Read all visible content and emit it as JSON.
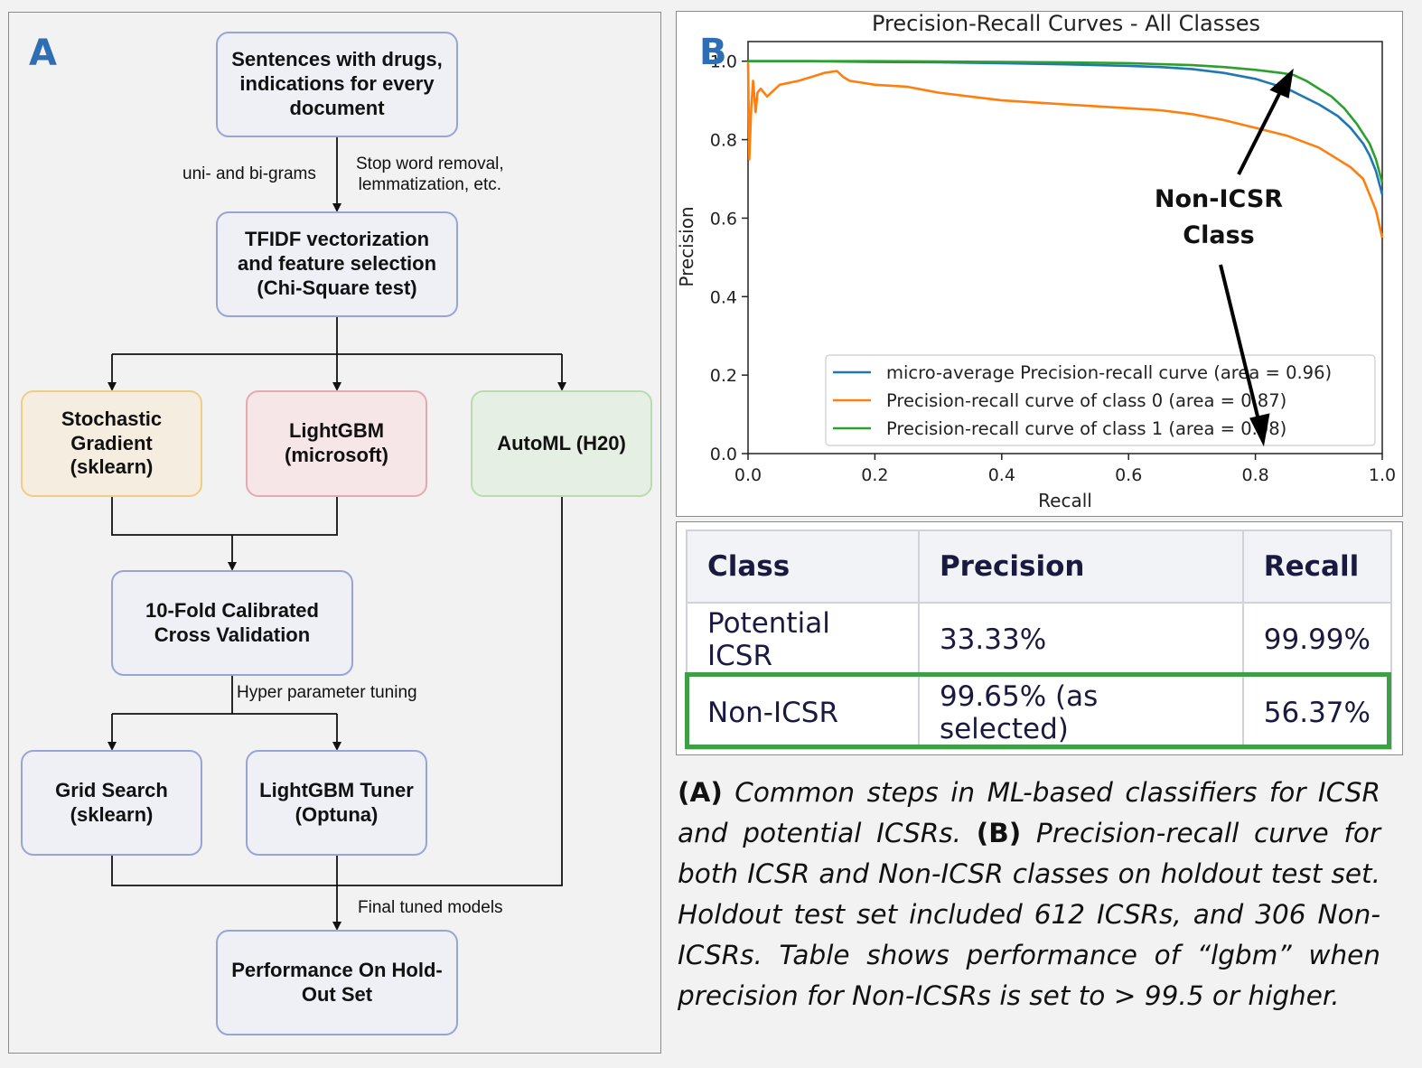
{
  "panel_a": {
    "letter": "A",
    "nodes": {
      "input": "Sentences with drugs, indications for every document",
      "tfidf": "TFIDF vectorization and feature selection (Chi-Square test)",
      "sgd": "Stochastic Gradient (sklearn)",
      "lgbm": "LightGBM (microsoft)",
      "automl": "AutoML (H20)",
      "cv": "10-Fold Calibrated Cross Validation",
      "grid": "Grid Search (sklearn)",
      "tuner": "LightGBM Tuner (Optuna)",
      "perf": "Performance On Hold-Out Set"
    },
    "edge_labels": {
      "ngrams": "uni- and bi-grams",
      "preprocess_1": "Stop word removal,",
      "preprocess_2": "lemmatization, etc.",
      "hyper": "Hyper parameter tuning",
      "final": "Final tuned models"
    }
  },
  "panel_b": {
    "letter": "B",
    "annotation": {
      "line1": "Non-ICSR",
      "line2": "Class"
    },
    "colors": {
      "micro": "#1f77b4",
      "class0": "#ff7f0e",
      "class1": "#2ca02c"
    }
  },
  "chart_data": {
    "type": "line",
    "title": "Precision-Recall Curves - All Classes",
    "xlabel": "Recall",
    "ylabel": "Precision",
    "xlim": [
      0.0,
      1.0
    ],
    "ylim": [
      0.0,
      1.05
    ],
    "xticks": [
      "0.0",
      "0.2",
      "0.4",
      "0.6",
      "0.8",
      "1.0"
    ],
    "yticks": [
      "0.0",
      "0.2",
      "0.4",
      "0.6",
      "0.8",
      "1.0"
    ],
    "legend_position": "lower-right",
    "series": [
      {
        "name": "micro-average Precision-recall curve (area = 0.96)",
        "x": [
          0.0,
          0.1,
          0.2,
          0.3,
          0.4,
          0.5,
          0.6,
          0.65,
          0.7,
          0.75,
          0.8,
          0.85,
          0.9,
          0.93,
          0.95,
          0.97,
          0.98,
          0.99,
          1.0
        ],
        "y": [
          1.0,
          1.0,
          0.998,
          0.997,
          0.995,
          0.992,
          0.988,
          0.985,
          0.98,
          0.97,
          0.955,
          0.93,
          0.89,
          0.86,
          0.83,
          0.79,
          0.76,
          0.72,
          0.66
        ]
      },
      {
        "name": "Precision-recall curve of class 0 (area = 0.87)",
        "x": [
          0.0,
          0.002,
          0.005,
          0.008,
          0.012,
          0.015,
          0.02,
          0.03,
          0.05,
          0.08,
          0.1,
          0.12,
          0.14,
          0.15,
          0.16,
          0.2,
          0.25,
          0.3,
          0.35,
          0.4,
          0.45,
          0.5,
          0.55,
          0.6,
          0.65,
          0.7,
          0.75,
          0.8,
          0.85,
          0.9,
          0.93,
          0.95,
          0.97,
          0.98,
          0.99,
          1.0
        ],
        "y": [
          1.0,
          0.75,
          0.88,
          0.95,
          0.87,
          0.92,
          0.93,
          0.91,
          0.94,
          0.95,
          0.96,
          0.97,
          0.975,
          0.96,
          0.95,
          0.94,
          0.935,
          0.92,
          0.91,
          0.9,
          0.895,
          0.89,
          0.885,
          0.88,
          0.875,
          0.865,
          0.85,
          0.83,
          0.81,
          0.78,
          0.75,
          0.73,
          0.7,
          0.66,
          0.62,
          0.55
        ]
      },
      {
        "name": "Precision-recall curve of class 1 (area = 0.98)",
        "x": [
          0.0,
          0.1,
          0.2,
          0.3,
          0.4,
          0.5,
          0.6,
          0.7,
          0.75,
          0.8,
          0.84,
          0.86,
          0.88,
          0.9,
          0.92,
          0.94,
          0.96,
          0.98,
          0.99,
          1.0
        ],
        "y": [
          1.0,
          1.0,
          1.0,
          0.999,
          0.998,
          0.997,
          0.995,
          0.99,
          0.985,
          0.978,
          0.97,
          0.965,
          0.95,
          0.93,
          0.91,
          0.88,
          0.84,
          0.79,
          0.75,
          0.69
        ]
      }
    ]
  },
  "table": {
    "headers": [
      "Class",
      "Precision",
      "Recall"
    ],
    "rows": [
      [
        "Potential ICSR",
        "33.33%",
        "99.99%"
      ],
      [
        "Non-ICSR",
        "99.65% (as selected)",
        "56.37%"
      ]
    ]
  },
  "caption": {
    "tag_a": "(A)",
    "text_a": "Common steps in ML-based classifiers for ICSR and potential ICSRs.",
    "tag_b": "(B)",
    "text_b": "Precision-recall curve for both ICSR and Non-ICSR classes on holdout test set. Holdout test set included 612 ICSRs, and 306 Non-ICSRs. Table shows performance of “lgbm” when precision for Non-ICSRs is set to > 99.5 or higher."
  }
}
